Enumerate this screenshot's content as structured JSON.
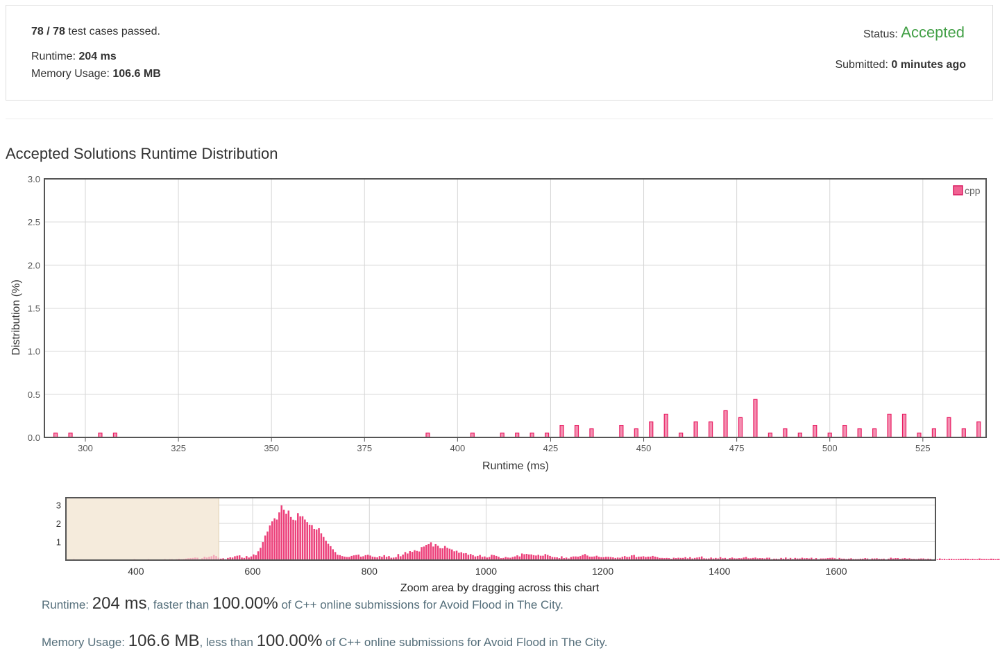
{
  "summary": {
    "passed_count": "78 / 78",
    "passed_suffix": "test cases passed.",
    "runtime_label": "Runtime:",
    "runtime_value": "204 ms",
    "memory_label": "Memory Usage:",
    "memory_value": "106.6 MB",
    "status_label": "Status:",
    "status_value": "Accepted",
    "submitted_label": "Submitted:",
    "submitted_value": "0 minutes ago",
    "status_color": "#43a047"
  },
  "heading": "Accepted Solutions Runtime Distribution",
  "chart_data": [
    {
      "type": "bar",
      "xlabel": "Runtime (ms)",
      "ylabel": "Distribution (%)",
      "xlim": [
        289,
        542
      ],
      "ylim": [
        0,
        3.0
      ],
      "x_ticks": [
        300,
        325,
        350,
        375,
        400,
        425,
        450,
        475,
        500,
        525
      ],
      "y_ticks": [
        "0.0",
        "0.5",
        "1.0",
        "1.5",
        "2.0",
        "2.5",
        "3.0"
      ],
      "grid": true,
      "legend_position": "top-right",
      "series": [
        {
          "name": "cpp",
          "color": "#f06292",
          "x": [
            292,
            296,
            304,
            308,
            392,
            404,
            412,
            416,
            420,
            424,
            428,
            432,
            436,
            444,
            448,
            452,
            456,
            460,
            464,
            468,
            472,
            476,
            480,
            484,
            488,
            492,
            496,
            500,
            504,
            508,
            512,
            516,
            520,
            524,
            528,
            532,
            536,
            540
          ],
          "values": [
            0.05,
            0.05,
            0.05,
            0.05,
            0.05,
            0.05,
            0.05,
            0.05,
            0.05,
            0.05,
            0.14,
            0.14,
            0.1,
            0.14,
            0.1,
            0.18,
            0.27,
            0.05,
            0.18,
            0.18,
            0.31,
            0.23,
            0.44,
            0.05,
            0.1,
            0.05,
            0.14,
            0.05,
            0.14,
            0.1,
            0.1,
            0.27,
            0.27,
            0.05,
            0.1,
            0.23,
            0.1,
            0.18
          ]
        }
      ]
    },
    {
      "type": "bar",
      "xlabel": "Zoom area by dragging across this chart",
      "xlim": [
        280,
        1770
      ],
      "ylim": [
        0,
        3.4
      ],
      "x_ticks": [
        400,
        600,
        800,
        1000,
        1200,
        1400,
        1600
      ],
      "y_ticks": [
        "1",
        "2",
        "3"
      ],
      "grid": true,
      "selected_range": [
        289,
        542
      ],
      "series": [
        {
          "name": "cpp",
          "color": "#f06292",
          "x_start": 284,
          "bin_width": 4,
          "values": [
            0.03,
            0.02,
            0.05,
            0.03,
            0.02,
            0.04,
            0.03,
            0.02,
            0.01,
            0.02,
            0.03,
            0.02,
            0.01,
            0.02,
            0.02,
            0.03,
            0.02,
            0.03,
            0.02,
            0.01,
            0.02,
            0.01,
            0.02,
            0.01,
            0.02,
            0.03,
            0.02,
            0.03,
            0.05,
            0.01,
            0.02,
            0.01,
            0.01,
            0.02,
            0.05,
            0.02,
            0.02,
            0.03,
            0.02,
            0.02,
            0.02,
            0.05,
            0.03,
            0.05,
            0.05,
            0.02,
            0.05,
            0.07,
            0.05,
            0.06,
            0.08,
            0.1,
            0.11,
            0.12,
            0.14,
            0.13,
            0.05,
            0.1,
            0.18,
            0.14,
            0.18,
            0.21,
            0.28,
            0.22,
            0.13,
            0.08,
            0.1,
            0.05,
            0.12,
            0.15,
            0.14,
            0.21,
            0.24,
            0.26,
            0.14,
            0.12,
            0.22,
            0.14,
            0.2,
            0.31,
            0.27,
            0.48,
            0.67,
            0.98,
            1.34,
            1.56,
            1.89,
            2.11,
            2.28,
            2.21,
            2.6,
            2.98,
            2.74,
            2.53,
            2.7,
            2.35,
            2.2,
            2.17,
            2.56,
            2.39,
            2.39,
            2.21,
            2.07,
            1.93,
            1.91,
            1.7,
            1.67,
            1.74,
            1.46,
            1.26,
            1.06,
            0.89,
            0.76,
            0.59,
            0.44,
            0.29,
            0.27,
            0.22,
            0.19,
            0.17,
            0.17,
            0.23,
            0.26,
            0.28,
            0.3,
            0.19,
            0.21,
            0.27,
            0.29,
            0.25,
            0.19,
            0.17,
            0.15,
            0.22,
            0.18,
            0.27,
            0.18,
            0.22,
            0.13,
            0.14,
            0.16,
            0.33,
            0.21,
            0.3,
            0.44,
            0.36,
            0.49,
            0.45,
            0.54,
            0.5,
            0.47,
            0.71,
            0.74,
            0.83,
            0.87,
            0.97,
            0.74,
            0.87,
            0.78,
            0.65,
            0.64,
            0.77,
            0.67,
            0.62,
            0.58,
            0.48,
            0.51,
            0.4,
            0.43,
            0.37,
            0.38,
            0.29,
            0.33,
            0.27,
            0.2,
            0.23,
            0.28,
            0.18,
            0.2,
            0.14,
            0.17,
            0.29,
            0.27,
            0.23,
            0.18,
            0.11,
            0.12,
            0.17,
            0.14,
            0.13,
            0.17,
            0.2,
            0.26,
            0.2,
            0.36,
            0.32,
            0.34,
            0.31,
            0.31,
            0.27,
            0.25,
            0.29,
            0.24,
            0.24,
            0.33,
            0.28,
            0.23,
            0.17,
            0.16,
            0.15,
            0.11,
            0.21,
            0.11,
            0.14,
            0.09,
            0.17,
            0.2,
            0.2,
            0.19,
            0.22,
            0.28,
            0.33,
            0.25,
            0.19,
            0.19,
            0.2,
            0.24,
            0.18,
            0.16,
            0.16,
            0.18,
            0.18,
            0.17,
            0.15,
            0.12,
            0.14,
            0.13,
            0.18,
            0.22,
            0.17,
            0.18,
            0.26,
            0.28,
            0.16,
            0.19,
            0.19,
            0.21,
            0.17,
            0.19,
            0.19,
            0.23,
            0.19,
            0.16,
            0.12,
            0.12,
            0.11,
            0.12,
            0.11,
            0.07,
            0.13,
            0.11,
            0.13,
            0.12,
            0.12,
            0.16,
            0.1,
            0.16,
            0.09,
            0.12,
            0.14,
            0.16,
            0.2,
            0.1,
            0.09,
            0.09,
            0.14,
            0.09,
            0.12,
            0.09,
            0.16,
            0.1,
            0.12,
            0.06,
            0.11,
            0.14,
            0.1,
            0.09,
            0.11,
            0.1,
            0.14,
            0.17,
            0.1,
            0.1,
            0.12,
            0.14,
            0.1,
            0.11,
            0.11,
            0.09,
            0.13,
            0.13,
            0.05,
            0.08,
            0.08,
            0.06,
            0.12,
            0.08,
            0.14,
            0.07,
            0.12,
            0.06,
            0.12,
            0.09,
            0.09,
            0.13,
            0.1,
            0.11,
            0.09,
            0.13,
            0.06,
            0.11,
            0.05,
            0.09,
            0.09,
            0.09,
            0.11,
            0.12,
            0.13,
            0.1,
            0.06,
            0.12,
            0.08,
            0.08,
            0.06,
            0.08,
            0.1,
            0.06,
            0.06,
            0.06,
            0.08,
            0.08,
            0.11,
            0.09,
            0.05,
            0.09,
            0.09,
            0.1,
            0.07,
            0.07,
            0.08,
            0.04,
            0.08,
            0.13,
            0.09,
            0.11,
            0.11,
            0.07,
            0.09,
            0.11,
            0.08,
            0.1,
            0.07,
            0.07,
            0.06,
            0.08,
            0.09,
            0.09,
            0.06,
            0.08,
            0.07,
            0.04,
            0.06,
            0.04,
            0.09,
            0.05,
            0.07,
            0.04,
            0.07,
            0.07,
            0.05,
            0.05,
            0.06,
            0.07,
            0.07,
            0.08,
            0.07,
            0.05,
            0.07,
            0.05,
            0.05,
            0.09,
            0.06,
            0.06,
            0.06,
            0.05,
            0.08,
            0.07,
            0.05,
            0.07,
            0.07,
            0.1,
            0.06,
            0.09,
            0.04,
            0.06,
            0.06,
            0.08,
            0.07,
            0.06,
            0.07,
            0.05,
            0.05,
            0.04,
            0.05,
            0.06,
            0.09,
            0.07,
            0.07,
            0.05,
            0.04,
            0.05,
            0.06,
            0.06,
            0.07,
            0.04,
            0.06,
            0.05,
            0.04,
            0.05,
            0.03,
            0.07,
            0.04,
            0.04,
            0.04,
            0.08,
            0.06,
            0.07,
            0.04,
            0.06,
            0.06,
            0.04,
            0.05
          ]
        }
      ]
    }
  ],
  "footer": {
    "runtime_label": "Runtime:",
    "runtime_value": "204 ms",
    "runtime_mid": ", faster than",
    "runtime_pct": "100.00%",
    "runtime_tail": "of C++ online submissions for Avoid Flood in The City.",
    "memory_label": "Memory Usage:",
    "memory_value": "106.6 MB",
    "memory_mid": ", less than",
    "memory_pct": "100.00%",
    "memory_tail": "of C++ online submissions for Avoid Flood in The City."
  }
}
